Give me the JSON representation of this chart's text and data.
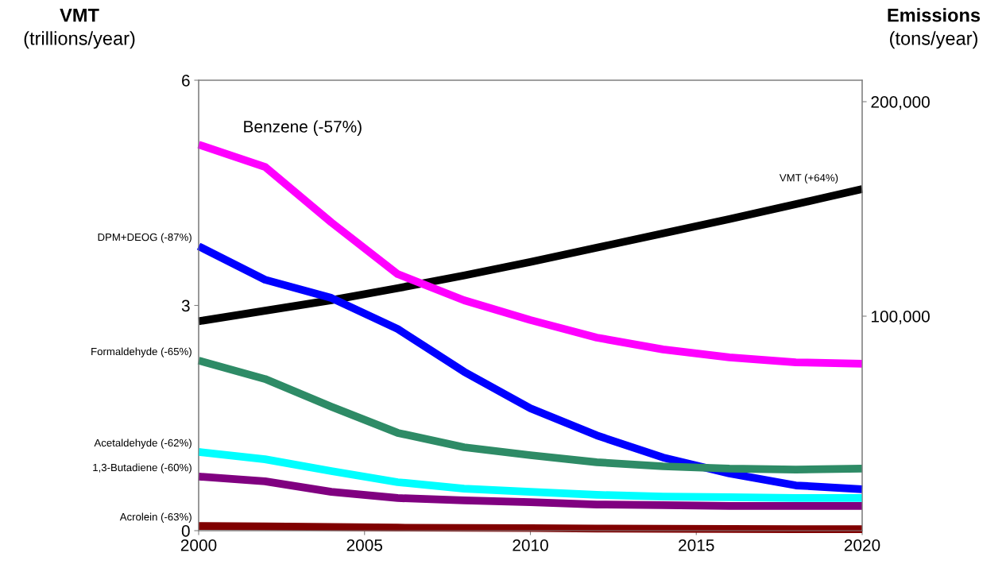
{
  "chart_data": {
    "type": "line",
    "ylabel": "VMT\n(trillions/year)",
    "y2label": "Emissions\n(tons/year)",
    "x": [
      2000,
      2002,
      2004,
      2006,
      2008,
      2010,
      2012,
      2014,
      2016,
      2018,
      2020
    ],
    "xlim": [
      2000,
      2020
    ],
    "xticks": [
      2000,
      2005,
      2010,
      2015,
      2020
    ],
    "ylim": [
      0,
      6
    ],
    "yticks": [
      0,
      3,
      6
    ],
    "y2lim": [
      0,
      210000
    ],
    "y2ticks": [
      {
        "value": 100000,
        "label": "100,000"
      },
      {
        "value": 200000,
        "label": "200,000"
      }
    ],
    "grid": false,
    "legend": false,
    "marker": "none",
    "line_style": "solid",
    "series": [
      {
        "name": "VMT (+64%)",
        "color": "#000000",
        "values": [
          2.79,
          2.93,
          3.07,
          3.23,
          3.4,
          3.58,
          3.77,
          3.96,
          4.15,
          4.35,
          4.55
        ]
      },
      {
        "name": "Benzene (-57%)",
        "color": "#ff00ff",
        "axis": "y2",
        "values": [
          180000,
          169600,
          143700,
          119600,
          107400,
          98200,
          90000,
          84500,
          80800,
          78500,
          77800
        ]
      },
      {
        "name": "DPM+DEOG (-87%)",
        "color": "#0000ff",
        "axis": "y2",
        "values": [
          132600,
          117000,
          108500,
          94000,
          74100,
          57000,
          44400,
          34100,
          26700,
          21100,
          19300
        ]
      },
      {
        "name": "Formaldehyde (-65%)",
        "color": "#2e8b66",
        "axis": "y2",
        "values": [
          79300,
          70700,
          57800,
          45600,
          38900,
          35200,
          31900,
          30000,
          28900,
          28500,
          28900
        ]
      },
      {
        "name": "Acetaldehyde (-62%)",
        "color": "#00ffff",
        "axis": "y2",
        "values": [
          36700,
          33300,
          27800,
          22600,
          19600,
          18100,
          16700,
          15900,
          15600,
          15200,
          15200
        ]
      },
      {
        "name": "1,3-Butadiene (-60%)",
        "color": "#800080",
        "axis": "y2",
        "values": [
          25200,
          23000,
          18100,
          15200,
          14100,
          13300,
          12200,
          11900,
          11500,
          11500,
          11500
        ]
      },
      {
        "name": "Acrolein (-63%)",
        "color": "#800000",
        "axis": "y2",
        "values": [
          2200,
          2000,
          1700,
          1400,
          1300,
          1200,
          1000,
          900,
          800,
          700,
          700
        ]
      }
    ]
  }
}
